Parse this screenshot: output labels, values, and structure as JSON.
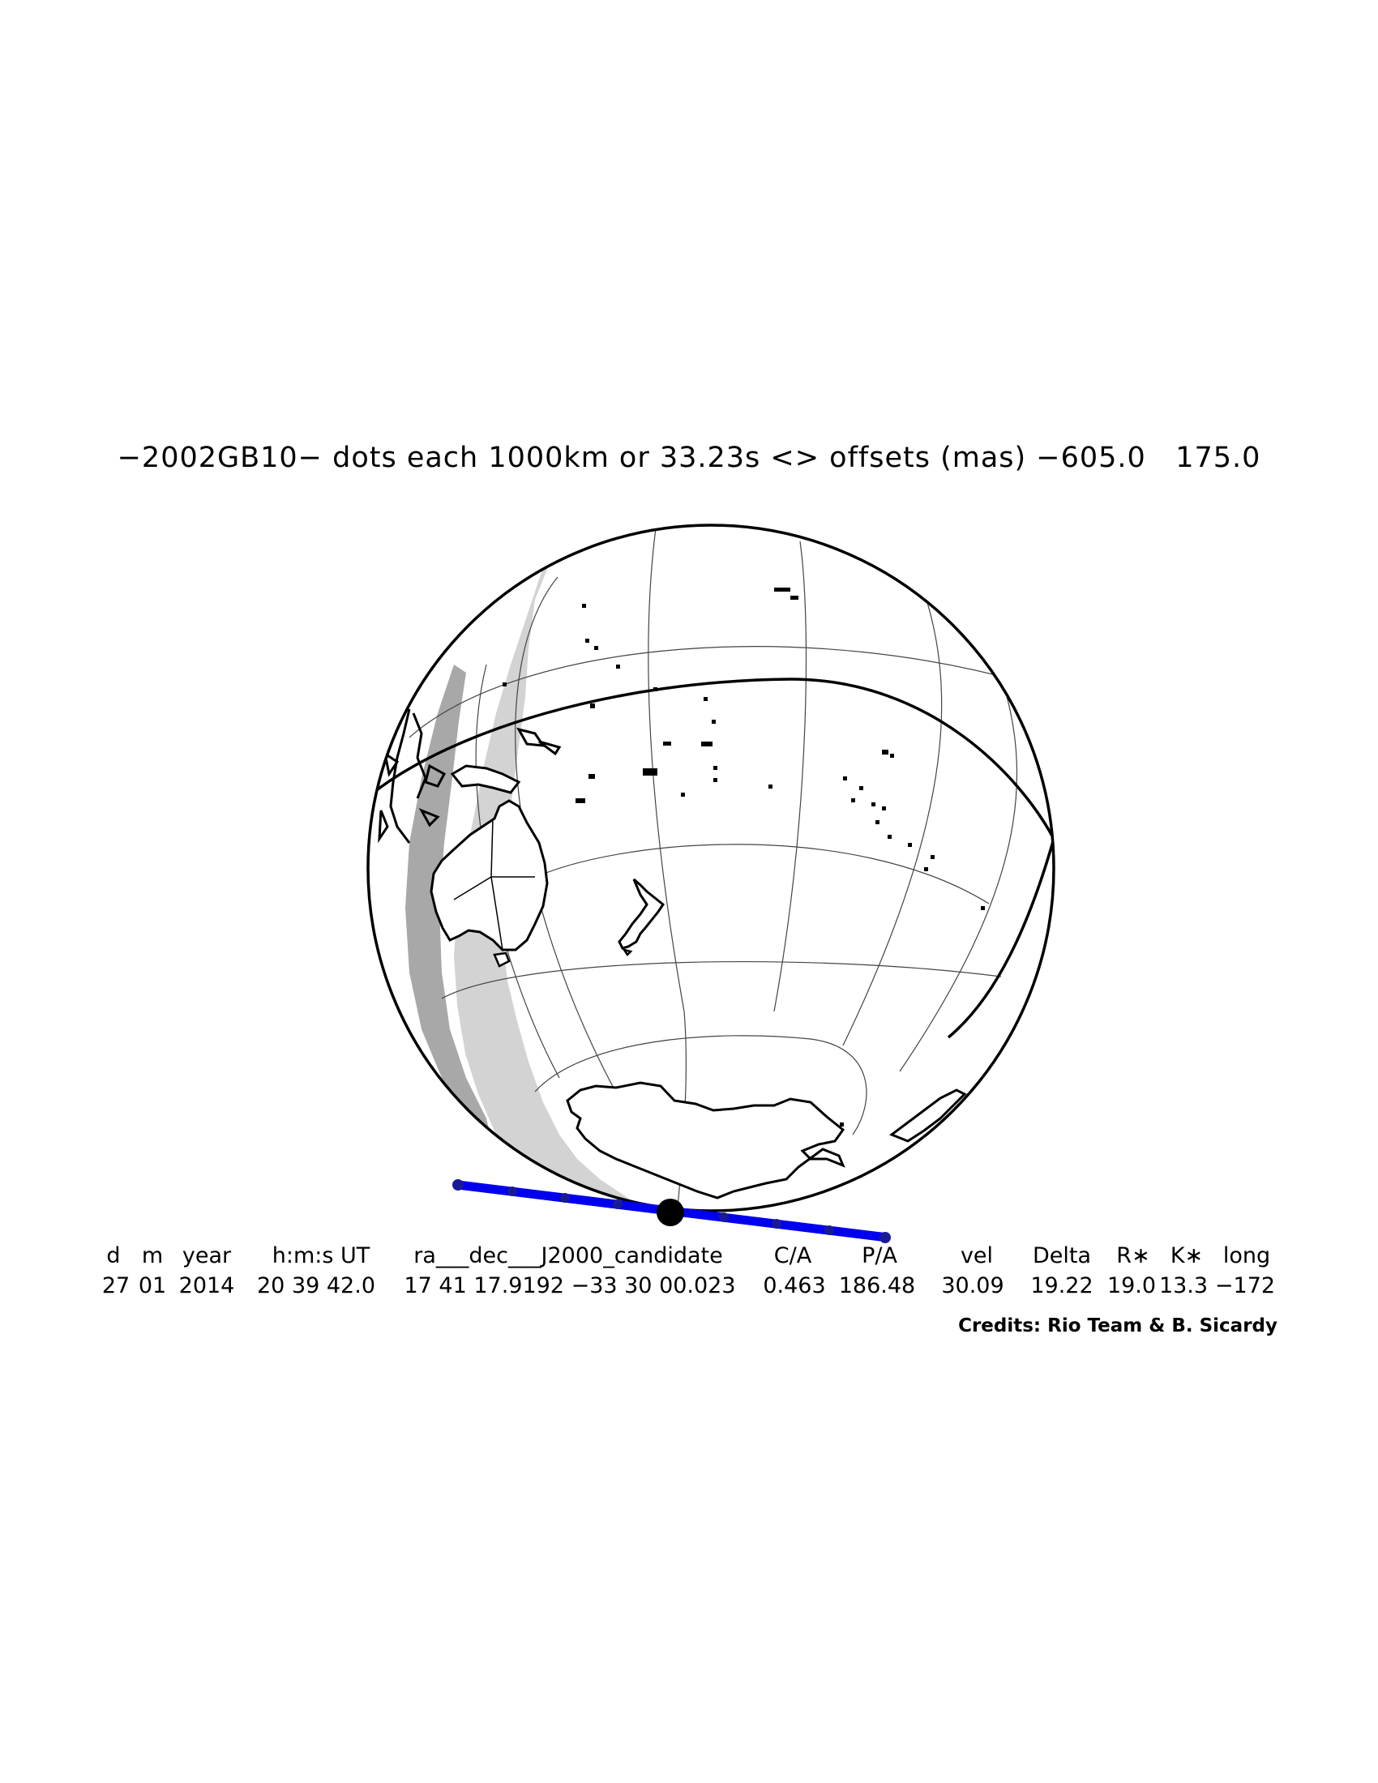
{
  "title": "−2002GB10− dots each 1000km or 33.23s <> offsets (mas) −605.0   175.0",
  "table": {
    "headers": [
      "d",
      "m",
      "year",
      "h:m:s UT",
      "ra___dec___J2000_candidate",
      "C/A",
      "P/A",
      "vel",
      "Delta",
      "R∗",
      "K∗",
      "long"
    ],
    "values": [
      "27",
      "01",
      "2014",
      "20 39 42.0",
      "17 41 17.9192 −33 30 00.023",
      "0.463",
      "186.48",
      "30.09",
      "19.22",
      "19.0",
      "13.3",
      "−172"
    ]
  },
  "credits": "Credits: Rio Team & B. Sicardy",
  "map": {
    "object": "2002GB10",
    "occultation_path_color": "#0000ee",
    "night_shade_color": "#d3d3d3",
    "twilight_shade_color": "#a8a8a8",
    "coastline_color": "#000000"
  }
}
